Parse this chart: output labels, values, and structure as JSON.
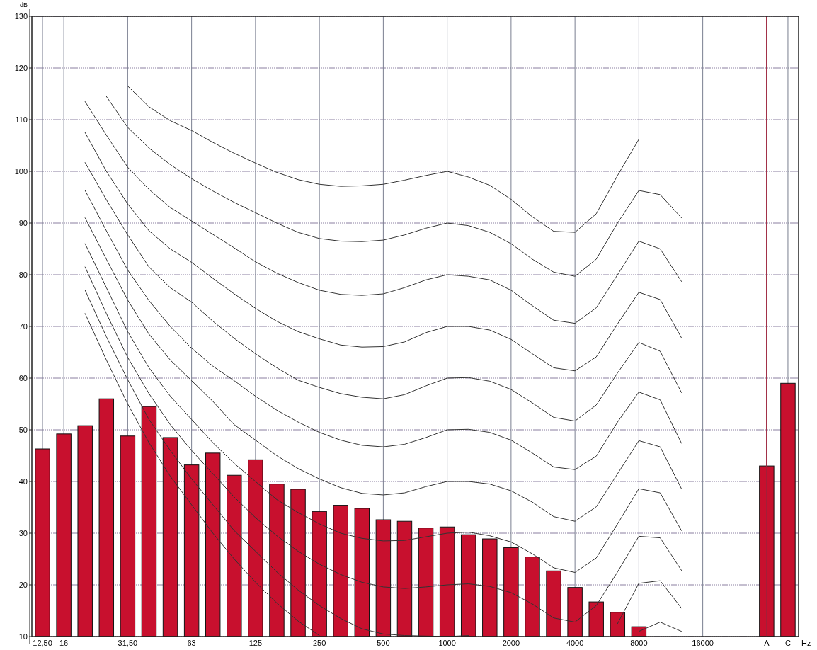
{
  "chart_data": {
    "type": "bar",
    "ylabel": "dB",
    "xlabel": "Hz",
    "categories": [
      "12,50",
      "16",
      null,
      null,
      "31,50",
      null,
      null,
      "63",
      null,
      null,
      "125",
      null,
      null,
      "250",
      null,
      null,
      "500",
      null,
      null,
      "1000",
      null,
      null,
      "2000",
      null,
      null,
      "4000",
      null,
      null,
      "8000",
      null,
      null,
      "16000",
      null,
      null,
      "A",
      "C"
    ],
    "series": [
      {
        "color": "#c8102e",
        "values": [
          46.3,
          49.2,
          50.8,
          56.0,
          48.8,
          54.5,
          48.5,
          43.2,
          45.5,
          41.2,
          44.2,
          39.5,
          38.5,
          34.2,
          35.4,
          34.8,
          32.6,
          32.3,
          31.0,
          31.2,
          29.7,
          28.9,
          27.2,
          25.4,
          22.7,
          19.5,
          16.7,
          14.7,
          11.9,
          null,
          null,
          null,
          null,
          null,
          43.0,
          59.0
        ]
      },
      {
        "type": "line",
        "color": "#333333",
        "values": [
          null,
          null,
          null,
          null,
          116.5,
          112.5,
          109.8,
          107.9,
          105.6,
          103.5,
          101.6,
          99.8,
          98.4,
          97.5,
          97.1,
          97.2,
          97.5,
          98.3,
          99.2,
          100,
          98.9,
          97.3,
          94.6,
          91.2,
          88.4,
          88.2,
          91.8,
          99.2,
          106.2,
          null,
          null,
          null,
          null,
          null,
          null,
          null
        ]
      },
      {
        "type": "line",
        "color": "#333333",
        "values": [
          null,
          null,
          null,
          114.5,
          108.5,
          104.5,
          101.3,
          98.6,
          96.2,
          94,
          92,
          90,
          88.2,
          87,
          86.5,
          86.4,
          86.7,
          87.7,
          89,
          90,
          89.5,
          88.2,
          86,
          83,
          80.5,
          79.7,
          83,
          90,
          96.3,
          95.5,
          91,
          null,
          null,
          null,
          null,
          null
        ]
      },
      {
        "type": "line",
        "color": "#333333",
        "values": [
          null,
          null,
          113.5,
          107,
          100.8,
          96.5,
          93,
          90.4,
          87.8,
          85.2,
          82.5,
          80.3,
          78.5,
          77,
          76.2,
          76,
          76.3,
          77.5,
          79,
          80,
          79.7,
          79,
          77,
          74,
          71.2,
          70.6,
          73.6,
          80,
          86.5,
          85,
          78.7,
          null,
          null,
          null,
          null,
          null
        ]
      },
      {
        "type": "line",
        "color": "#333333",
        "values": [
          null,
          null,
          107.5,
          100,
          93.7,
          88.5,
          85,
          82.4,
          79.3,
          76.3,
          73.5,
          71,
          69,
          67.6,
          66.4,
          66,
          66.1,
          67,
          68.8,
          70,
          70,
          69.3,
          67.5,
          64.7,
          62,
          61.4,
          64.1,
          70.5,
          76.6,
          75.2,
          67.8,
          null,
          null,
          null,
          null,
          null
        ]
      },
      {
        "type": "line",
        "color": "#333333",
        "values": [
          null,
          null,
          101.7,
          94.5,
          87.7,
          81.5,
          77.5,
          74.7,
          71,
          67.7,
          64.7,
          62,
          59.6,
          58.2,
          57,
          56.3,
          56,
          56.8,
          58.5,
          60,
          60.1,
          59.4,
          57.8,
          55.2,
          52.4,
          51.7,
          54.8,
          61,
          66.9,
          65.2,
          57.2,
          null,
          null,
          null,
          null,
          null
        ]
      },
      {
        "type": "line",
        "color": "#333333",
        "values": [
          null,
          null,
          96.3,
          88.5,
          80.9,
          75,
          70,
          65.8,
          62.3,
          59.5,
          56.5,
          53.8,
          51.5,
          49.5,
          48,
          47,
          46.7,
          47.2,
          48.5,
          50,
          50.1,
          49.5,
          48,
          45.5,
          42.8,
          42.3,
          44.9,
          51.5,
          57.3,
          55.8,
          47.4,
          null,
          null,
          null,
          null,
          null
        ]
      },
      {
        "type": "line",
        "color": "#333333",
        "values": [
          null,
          null,
          91,
          83,
          75.1,
          68.5,
          63.5,
          59.5,
          55.5,
          51,
          48,
          45,
          42.5,
          40.5,
          38.8,
          37.7,
          37.4,
          37.8,
          39,
          40,
          40,
          39.5,
          38.2,
          36,
          33.2,
          32.3,
          35.1,
          41.5,
          47.9,
          46.7,
          38.6,
          null,
          null,
          null,
          null,
          null
        ]
      },
      {
        "type": "line",
        "color": "#333333",
        "values": [
          null,
          null,
          86,
          77.5,
          69,
          62,
          56.5,
          52,
          47.5,
          43.5,
          40,
          36.5,
          34,
          31.8,
          30,
          29,
          28.5,
          28.6,
          29.3,
          30,
          30.2,
          29.5,
          28.3,
          26,
          23.3,
          22.4,
          25.2,
          31.8,
          38.6,
          37.8,
          30.5,
          null,
          null,
          null,
          null,
          null
        ]
      },
      {
        "type": "line",
        "color": "#333333",
        "values": [
          null,
          null,
          81.5,
          72.5,
          64,
          57,
          51,
          46,
          41.5,
          37,
          33,
          29.5,
          26.5,
          24,
          22,
          20.5,
          19.6,
          19.3,
          19.6,
          20,
          20.2,
          19.7,
          18.5,
          16.3,
          13.6,
          12.8,
          16,
          22.5,
          29.4,
          29.1,
          22.8,
          null,
          null,
          null,
          null,
          null
        ]
      },
      {
        "type": "line",
        "color": "#333333",
        "values": [
          null,
          null,
          77,
          68,
          59.7,
          52,
          46,
          40.5,
          35.5,
          30.5,
          26.5,
          22.5,
          19,
          16,
          13.5,
          11.5,
          10.5,
          10.2,
          10.1,
          10,
          10.2,
          null,
          null,
          null,
          null,
          null,
          null,
          12.5,
          20.3,
          20.8,
          15.5,
          null,
          null,
          null,
          null,
          null
        ]
      },
      {
        "type": "line",
        "color": "#333333",
        "values": [
          null,
          null,
          72.5,
          63.5,
          55,
          47.5,
          41,
          35.5,
          30,
          25,
          20.5,
          16.5,
          13,
          10.2,
          null,
          null,
          null,
          null,
          null,
          null,
          null,
          null,
          null,
          null,
          null,
          null,
          null,
          null,
          11,
          12.8,
          11,
          null,
          null,
          null,
          null,
          null
        ]
      }
    ],
    "ylim": [
      10,
      130
    ],
    "yticks": [
      10,
      20,
      30,
      40,
      50,
      60,
      70,
      80,
      90,
      100,
      110,
      120,
      130
    ],
    "grid": true,
    "ref_lines": [
      {
        "axis": "x",
        "value": "A",
        "color": "#a0203a"
      }
    ]
  }
}
